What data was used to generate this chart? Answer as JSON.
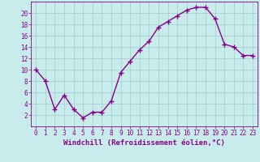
{
  "x": [
    0,
    1,
    2,
    3,
    4,
    5,
    6,
    7,
    8,
    9,
    10,
    11,
    12,
    13,
    14,
    15,
    16,
    17,
    18,
    19,
    20,
    21,
    22,
    23
  ],
  "y": [
    10,
    8,
    3,
    5.5,
    3,
    1.5,
    2.5,
    2.5,
    4.5,
    9.5,
    11.5,
    13.5,
    15,
    17.5,
    18.5,
    19.5,
    20.5,
    21,
    21,
    19,
    14.5,
    14,
    12.5,
    12.5
  ],
  "line_color": "#880088",
  "marker": "+",
  "marker_size": 4,
  "marker_edge_width": 1.0,
  "background_color": "#c8ecec",
  "grid_color": "#a0cccc",
  "xlabel": "Windchill (Refroidissement éolien,°C)",
  "ylim": [
    0,
    22
  ],
  "xlim": [
    -0.5,
    23.5
  ],
  "yticks": [
    2,
    4,
    6,
    8,
    10,
    12,
    14,
    16,
    18,
    20
  ],
  "xticks": [
    0,
    1,
    2,
    3,
    4,
    5,
    6,
    7,
    8,
    9,
    10,
    11,
    12,
    13,
    14,
    15,
    16,
    17,
    18,
    19,
    20,
    21,
    22,
    23
  ],
  "tick_color": "#880088",
  "label_color": "#880088",
  "font_size_label": 6.5,
  "font_size_tick": 5.5,
  "line_width": 1.0
}
